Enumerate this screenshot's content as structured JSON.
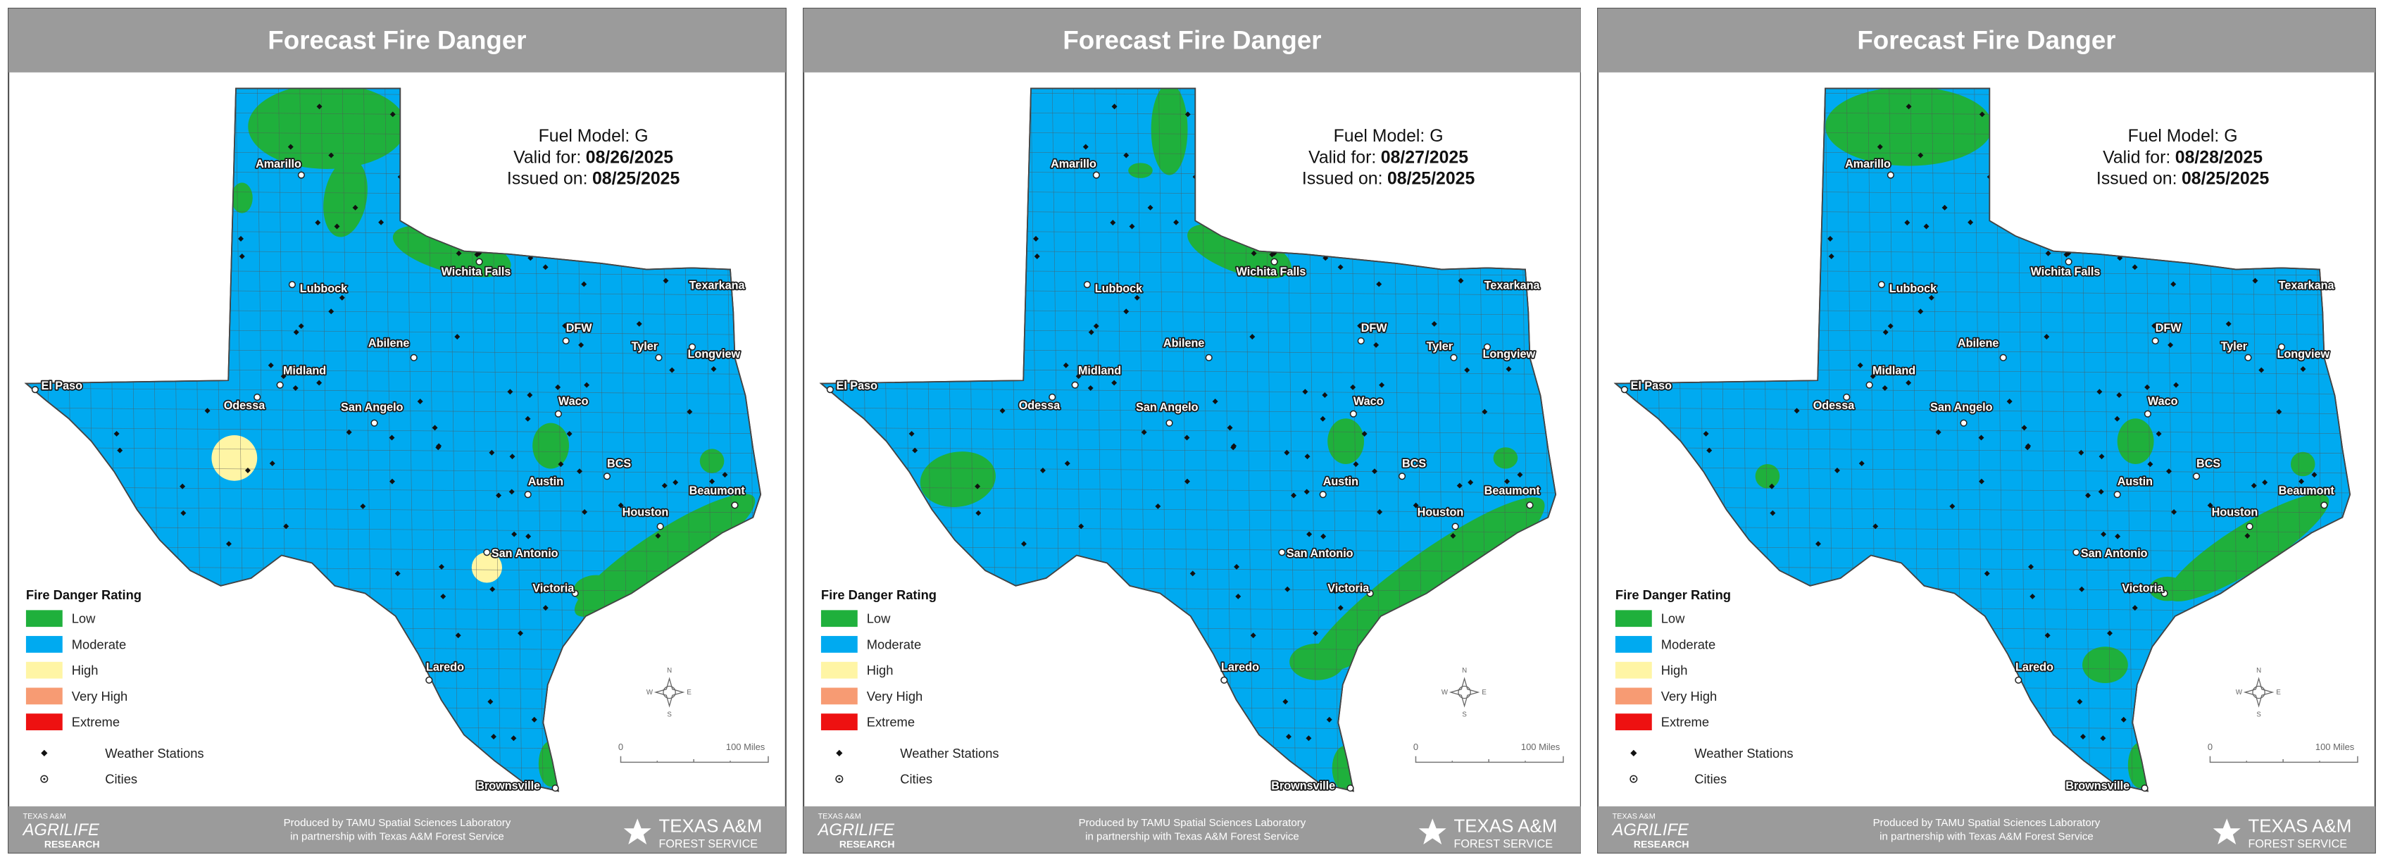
{
  "panels": [
    {
      "header": "Forecast Fire Danger",
      "fuel_model": "Fuel Model: G",
      "valid_label": "Valid for:",
      "valid_date": "08/26/2025",
      "issued_label": "Issued on:",
      "issued_date": "08/25/2025"
    },
    {
      "header": "Forecast Fire Danger",
      "fuel_model": "Fuel Model: G",
      "valid_label": "Valid for:",
      "valid_date": "08/27/2025",
      "issued_label": "Issued on:",
      "issued_date": "08/25/2025"
    },
    {
      "header": "Forecast Fire Danger",
      "fuel_model": "Fuel Model: G",
      "valid_label": "Valid for:",
      "valid_date": "08/28/2025",
      "issued_label": "Issued on:",
      "issued_date": "08/25/2025"
    }
  ],
  "legend": {
    "title": "Fire Danger Rating",
    "items": [
      {
        "label": "Low",
        "color": "#1fb03c"
      },
      {
        "label": "Moderate",
        "color": "#00aaf0"
      },
      {
        "label": "High",
        "color": "#fff5a5"
      },
      {
        "label": "Very High",
        "color": "#f79b73"
      },
      {
        "label": "Extreme",
        "color": "#ee1111"
      }
    ],
    "symbols": [
      "Weather Stations",
      "Cities"
    ]
  },
  "cities": [
    "Amarillo",
    "Lubbock",
    "Wichita Falls",
    "Texarkana",
    "DFW",
    "Tyler",
    "Longview",
    "Abilene",
    "Midland",
    "Odessa",
    "El Paso",
    "San Angelo",
    "Waco",
    "Austin",
    "BCS",
    "Beaumont",
    "Houston",
    "San Antonio",
    "Victoria",
    "Laredo",
    "Brownsville"
  ],
  "compass": [
    "N",
    "E",
    "S",
    "W"
  ],
  "scale": {
    "start": "0",
    "end": "100 Miles"
  },
  "footer": {
    "produced": "Produced by TAMU Spatial Sciences Laboratory",
    "partnership": "in partnership with Texas A&M Forest Service",
    "agrilife": [
      "TEXAS A&M",
      "AGRILIFE",
      "RESEARCH"
    ],
    "forest": [
      "TEXAS A&M",
      "FOREST SERVICE"
    ]
  }
}
